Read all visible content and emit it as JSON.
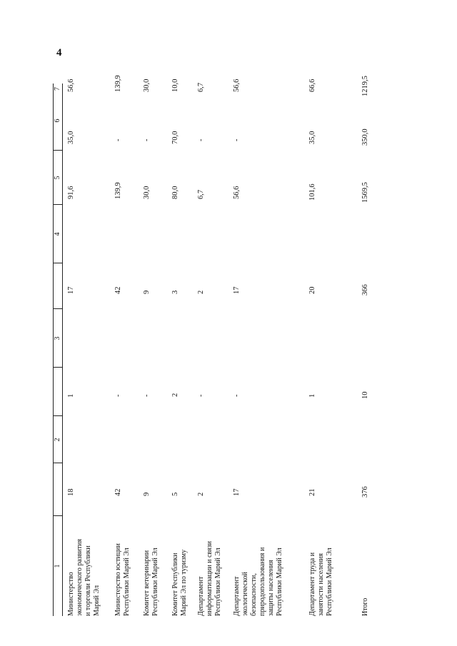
{
  "page_number": "4",
  "columns": [
    "1",
    "2",
    "3",
    "4",
    "5",
    "6",
    "7"
  ],
  "rows": [
    {
      "name_lines": [
        "Министерство",
        "экономического развития",
        "и торговли Республики",
        "Марий Эл"
      ],
      "c2": "18",
      "c3": "1",
      "c4": "17",
      "c5": "91,6",
      "c6": "35,0",
      "c7": "56,6"
    },
    {
      "name_lines": [
        "Министерство юстиции",
        "Республики Марий Эл"
      ],
      "c2": "42",
      "c3": "-",
      "c4": "42",
      "c5": "139,9",
      "c6": "-",
      "c7": "139,9"
    },
    {
      "name_lines": [
        "Комитет ветеринарии",
        "Республики Марий Эл"
      ],
      "c2": "9",
      "c3": "-",
      "c4": "9",
      "c5": "30,0",
      "c6": "-",
      "c7": "30,0"
    },
    {
      "name_lines": [
        "Комитет Республики",
        "Марий Эл по туризму"
      ],
      "c2": "5",
      "c3": "2",
      "c4": "3",
      "c5": "80,0",
      "c6": "70,0",
      "c7": "10,0"
    },
    {
      "name_lines": [
        "Департамент",
        "информатизации и связи",
        "Республики Марий Эл"
      ],
      "c2": "2",
      "c3": "-",
      "c4": "2",
      "c5": "6,7",
      "c6": "-",
      "c7": "6,7"
    },
    {
      "name_lines": [
        "Департамент",
        "экологической",
        "безопасности,",
        "природопользования и",
        "защиты населения",
        "Республики Марий Эл"
      ],
      "c2": "17",
      "c3": "-",
      "c4": "17",
      "c5": "56,6",
      "c6": "-",
      "c7": "56,6"
    },
    {
      "name_lines": [
        "Департамент труда и",
        "занятости населения",
        "Республики Марий Эл"
      ],
      "c2": "21",
      "c3": "1",
      "c4": "20",
      "c5": "101,6",
      "c6": "35,0",
      "c7": "66,6"
    },
    {
      "name_lines": [
        "Итого"
      ],
      "c2": "376",
      "c3": "10",
      "c4": "366",
      "c5": "1569,5",
      "c6": "350,0",
      "c7": "1219,5"
    }
  ]
}
